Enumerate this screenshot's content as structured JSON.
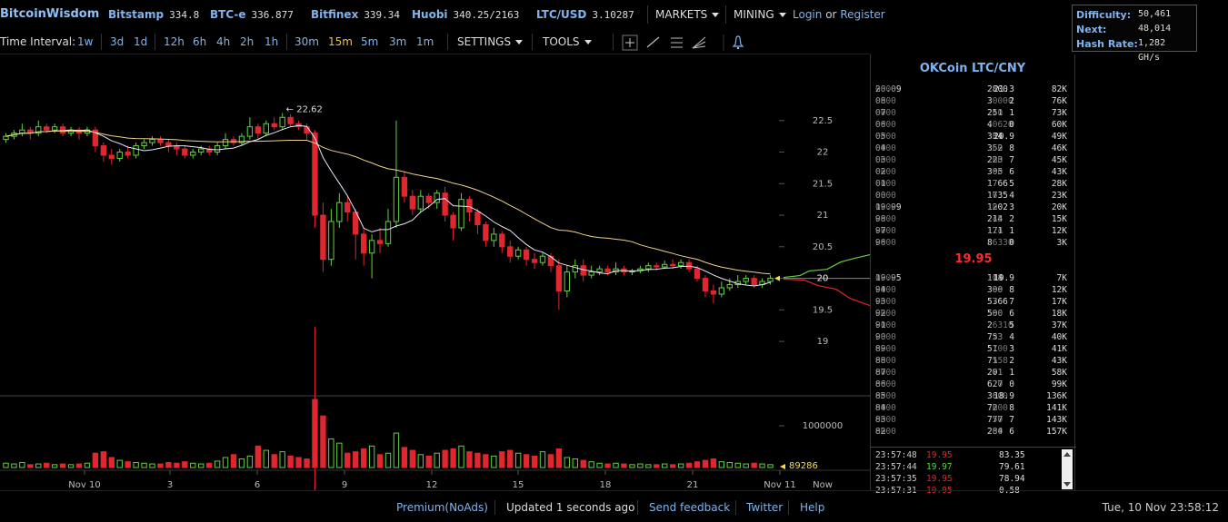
{
  "logo": "BitcoinWisdom",
  "tickers": [
    {
      "exchange": "Bitstamp",
      "price": "334.8"
    },
    {
      "exchange": "BTC-e",
      "price": "336.877"
    },
    {
      "exchange": "Bitfinex",
      "price": "339.34"
    },
    {
      "exchange": "Huobi",
      "price": "340.25/2163"
    },
    {
      "exchange": "LTC/USD",
      "price": "3.10287"
    }
  ],
  "menus": {
    "markets": "MARKETS",
    "mining": "MINING"
  },
  "auth": {
    "login": "Login",
    "or": "or",
    "register": "Register"
  },
  "mining_stats": {
    "difficulty_label": "Difficulty:",
    "difficulty": "50,461",
    "next_label": "Next:",
    "next": "48,014",
    "hashrate_label": "Hash Rate:",
    "hashrate": "1,282 GH/s"
  },
  "interval_label": "Time Interval:",
  "intervals": [
    "1w",
    "3d",
    "1d",
    "12h",
    "6h",
    "4h",
    "2h",
    "1h",
    "30m",
    "15m",
    "5m",
    "3m",
    "1m"
  ],
  "active_interval": "15m",
  "settings_label": "SETTINGS",
  "tools_label": "TOOLS",
  "colors": {
    "up": "#64d23c",
    "down": "#e0262e",
    "accent": "#7fb4ee",
    "ma_fast": "#e8e8ff",
    "ma_slow": "#f1d38a"
  },
  "chart_data": {
    "type": "candlestick",
    "price_axis_ticks": [
      "22.5",
      "22",
      "21.5",
      "21",
      "20.5",
      "20",
      "19.5",
      "19"
    ],
    "price_range": [
      18.8,
      23.0
    ],
    "volume_axis_label": "1000000",
    "volume_range": [
      0,
      1700000
    ],
    "time_axis_ticks": [
      "Nov 10",
      "3",
      "6",
      "9",
      "12",
      "15",
      "18",
      "21",
      "Nov 11",
      "Now"
    ],
    "high_marker": "22.62",
    "current_price_marker": "20",
    "current_volume_marker": "89286",
    "candles": [
      [
        22.2,
        22.25,
        22.3,
        22.15
      ],
      [
        22.25,
        22.3,
        22.35,
        22.2
      ],
      [
        22.3,
        22.35,
        22.45,
        22.25
      ],
      [
        22.35,
        22.3,
        22.4,
        22.2
      ],
      [
        22.3,
        22.4,
        22.5,
        22.25
      ],
      [
        22.4,
        22.35,
        22.45,
        22.3
      ],
      [
        22.35,
        22.4,
        22.45,
        22.3
      ],
      [
        22.4,
        22.3,
        22.45,
        22.25
      ],
      [
        22.3,
        22.35,
        22.4,
        22.25
      ],
      [
        22.35,
        22.3,
        22.4,
        22.2
      ],
      [
        22.3,
        22.35,
        22.4,
        22.25
      ],
      [
        22.35,
        22.1,
        22.4,
        22.0
      ],
      [
        22.1,
        21.95,
        22.15,
        21.85
      ],
      [
        21.95,
        21.9,
        22.05,
        21.8
      ],
      [
        21.9,
        22.0,
        22.05,
        21.85
      ],
      [
        22.0,
        21.95,
        22.1,
        21.9
      ],
      [
        21.95,
        22.1,
        22.15,
        21.9
      ],
      [
        22.1,
        22.15,
        22.2,
        22.05
      ],
      [
        22.15,
        22.2,
        22.25,
        22.1
      ],
      [
        22.2,
        22.15,
        22.25,
        22.1
      ],
      [
        22.15,
        22.1,
        22.2,
        22.0
      ],
      [
        22.1,
        22.05,
        22.15,
        21.95
      ],
      [
        22.05,
        21.95,
        22.1,
        21.9
      ],
      [
        21.95,
        22.0,
        22.05,
        21.9
      ],
      [
        22.0,
        22.05,
        22.1,
        21.95
      ],
      [
        22.05,
        22.0,
        22.1,
        21.95
      ],
      [
        22.0,
        22.1,
        22.15,
        21.95
      ],
      [
        22.1,
        22.2,
        22.3,
        22.05
      ],
      [
        22.2,
        22.15,
        22.25,
        22.1
      ],
      [
        22.15,
        22.25,
        22.3,
        22.1
      ],
      [
        22.25,
        22.4,
        22.55,
        22.2
      ],
      [
        22.4,
        22.3,
        22.45,
        22.2
      ],
      [
        22.3,
        22.45,
        22.5,
        22.25
      ],
      [
        22.45,
        22.4,
        22.55,
        22.35
      ],
      [
        22.4,
        22.55,
        22.62,
        22.35
      ],
      [
        22.55,
        22.45,
        22.6,
        22.4
      ],
      [
        22.45,
        22.4,
        22.5,
        22.35
      ],
      [
        22.4,
        22.3,
        22.45,
        22.2
      ],
      [
        22.3,
        21.0,
        22.35,
        20.8
      ],
      [
        21.0,
        20.3,
        21.2,
        20.1
      ],
      [
        20.3,
        20.9,
        21.1,
        20.2
      ],
      [
        20.9,
        21.2,
        21.35,
        20.8
      ],
      [
        21.2,
        21.05,
        21.3,
        20.9
      ],
      [
        21.05,
        20.7,
        21.1,
        20.3
      ],
      [
        20.7,
        20.4,
        20.8,
        20.2
      ],
      [
        20.4,
        20.6,
        20.7,
        20.0
      ],
      [
        20.6,
        20.55,
        20.8,
        20.4
      ],
      [
        20.55,
        20.9,
        21.1,
        20.5
      ],
      [
        20.9,
        21.6,
        22.5,
        20.8
      ],
      [
        21.6,
        21.3,
        21.7,
        21.2
      ],
      [
        21.3,
        21.1,
        21.4,
        21.0
      ],
      [
        21.1,
        21.3,
        21.4,
        21.05
      ],
      [
        21.3,
        21.2,
        21.35,
        21.1
      ],
      [
        21.2,
        21.35,
        21.4,
        21.1
      ],
      [
        21.35,
        21.0,
        21.45,
        20.9
      ],
      [
        21.0,
        20.8,
        21.05,
        20.6
      ],
      [
        20.8,
        21.25,
        21.35,
        20.75
      ],
      [
        21.25,
        21.05,
        21.3,
        20.9
      ],
      [
        21.05,
        20.85,
        21.1,
        20.7
      ],
      [
        20.85,
        20.6,
        20.9,
        20.5
      ],
      [
        20.6,
        20.7,
        20.8,
        20.5
      ],
      [
        20.7,
        20.5,
        20.75,
        20.4
      ],
      [
        20.5,
        20.35,
        20.6,
        20.25
      ],
      [
        20.35,
        20.45,
        20.5,
        20.3
      ],
      [
        20.45,
        20.3,
        20.5,
        20.2
      ],
      [
        20.3,
        20.25,
        20.4,
        20.15
      ],
      [
        20.25,
        20.35,
        20.4,
        20.2
      ],
      [
        20.35,
        20.2,
        20.4,
        20.1
      ],
      [
        20.2,
        19.8,
        20.3,
        19.5
      ],
      [
        19.8,
        20.1,
        20.2,
        19.7
      ],
      [
        20.1,
        20.2,
        20.3,
        20.0
      ],
      [
        20.2,
        20.05,
        20.3,
        19.95
      ],
      [
        20.05,
        20.1,
        20.2,
        20.0
      ],
      [
        20.1,
        20.15,
        20.2,
        20.05
      ],
      [
        20.15,
        20.1,
        20.2,
        20.05
      ],
      [
        20.1,
        20.15,
        20.25,
        20.05
      ],
      [
        20.15,
        20.1,
        20.2,
        20.05
      ],
      [
        20.1,
        20.12,
        20.15,
        20.05
      ],
      [
        20.12,
        20.15,
        20.2,
        20.08
      ],
      [
        20.15,
        20.2,
        20.25,
        20.1
      ],
      [
        20.2,
        20.18,
        20.25,
        20.12
      ],
      [
        20.18,
        20.22,
        20.28,
        20.15
      ],
      [
        20.22,
        20.2,
        20.3,
        20.15
      ],
      [
        20.2,
        20.25,
        20.3,
        20.15
      ],
      [
        20.25,
        20.15,
        20.3,
        20.1
      ],
      [
        20.15,
        20.0,
        20.2,
        19.95
      ],
      [
        20.0,
        19.8,
        20.05,
        19.7
      ],
      [
        19.8,
        19.75,
        19.9,
        19.6
      ],
      [
        19.75,
        19.85,
        19.95,
        19.7
      ],
      [
        19.85,
        19.9,
        20.0,
        19.8
      ],
      [
        19.9,
        19.95,
        20.05,
        19.85
      ],
      [
        19.95,
        20.0,
        20.05,
        19.9
      ],
      [
        20.0,
        19.9,
        20.05,
        19.85
      ],
      [
        19.9,
        19.95,
        20.0,
        19.85
      ],
      [
        19.95,
        20.0,
        20.05,
        19.9
      ]
    ],
    "volumes": [
      6,
      5,
      7,
      4,
      5,
      6,
      4,
      5,
      4,
      5,
      6,
      20,
      22,
      14,
      10,
      8,
      7,
      6,
      5,
      5,
      7,
      6,
      8,
      6,
      5,
      6,
      9,
      14,
      18,
      12,
      16,
      30,
      24,
      18,
      22,
      16,
      14,
      12,
      95,
      72,
      40,
      34,
      20,
      22,
      26,
      30,
      18,
      20,
      48,
      28,
      24,
      18,
      16,
      20,
      24,
      26,
      30,
      22,
      20,
      18,
      16,
      22,
      24,
      20,
      18,
      16,
      22,
      18,
      26,
      14,
      12,
      10,
      8,
      6,
      5,
      6,
      5,
      4,
      5,
      4,
      4,
      5,
      4,
      5,
      6,
      8,
      10,
      12,
      8,
      7,
      6,
      5,
      6,
      5,
      4
    ]
  },
  "book": {
    "title": "OKCoin LTC/CNY",
    "asks": [
      {
        "p_hi": "20.09",
        "p_lo": "0000",
        "a_hi": "2800",
        "a_lo": ".3",
        "s": "21.3",
        "c": "",
        "t": "82K"
      },
      {
        "p_hi": "08",
        "p_lo": "0000",
        "a_hi": "3",
        "a_lo": ".0000",
        "s": "2",
        "c": "",
        "t": "76K"
      },
      {
        "p_hi": "07",
        "p_lo": "0000",
        "a_hi": "251",
        "a_lo": ".40",
        "s": "1",
        "c": "",
        "t": "73K"
      },
      {
        "p_hi": "06",
        "p_lo": "0000",
        "a_hi": "4",
        "a_lo": ".0620",
        "s": "0",
        "c": "",
        "t": "60K"
      },
      {
        "p_hi": "05",
        "p_lo": "0000",
        "a_hi": "334",
        "a_lo": ".61",
        "s": "20.9",
        "c": "",
        "t": "49K"
      },
      {
        "p_hi": "04",
        "p_lo": "0000",
        "a_hi": "352",
        "a_lo": ".60",
        "s": "8",
        "c": "",
        "t": "46K"
      },
      {
        "p_hi": "03",
        "p_lo": "0000",
        "a_hi": "223",
        "a_lo": ".60",
        "s": "7",
        "c": "",
        "t": "45K"
      },
      {
        "p_hi": "02",
        "p_lo": "0000",
        "a_hi": "305",
        "a_lo": ".60",
        "s": "6",
        "c": "",
        "t": "43K"
      },
      {
        "p_hi": "01",
        "p_lo": "0000",
        "a_hi": "1766",
        "a_lo": ".7",
        "s": "5",
        "c": "",
        "t": "28K"
      },
      {
        "p_hi": "00",
        "p_lo": "0000",
        "a_hi": "1735",
        "a_lo": ".6",
        "s": "4",
        "c": "",
        "t": "23K"
      },
      {
        "p_hi": "19.99",
        "p_lo": "0000",
        "a_hi": "1202",
        "a_lo": ".0",
        "s": "3",
        "c": "",
        "t": "20K"
      },
      {
        "p_hi": "98",
        "p_lo": "0000",
        "a_hi": "214",
        "a_lo": ".45",
        "s": "2",
        "c": "",
        "t": "15K"
      },
      {
        "p_hi": "97",
        "p_lo": "0000",
        "a_hi": "171",
        "a_lo": ".24",
        "s": "1",
        "c": "",
        "t": "12K"
      },
      {
        "p_hi": "96",
        "p_lo": "0000",
        "a_hi": "8",
        "a_lo": ".6330",
        "s": "0",
        "c": "",
        "t": "3K"
      }
    ],
    "mid_price": "19.95",
    "bids": [
      {
        "p_hi": "19.95",
        "p_lo": "0000",
        "a_hi": "114",
        "a_lo": ".08",
        "s": "19.9",
        "c": "",
        "t": "7K"
      },
      {
        "p_hi": "94",
        "p_lo": "0000",
        "a_hi": "300",
        "a_lo": ".88",
        "s": "8",
        "c": "",
        "t": "12K"
      },
      {
        "p_hi": "93",
        "p_lo": "0000",
        "a_hi": "5366",
        "a_lo": ".7",
        "s": "7",
        "c": "",
        "t": "17K"
      },
      {
        "p_hi": "92",
        "p_lo": "0000",
        "a_hi": "500",
        "a_lo": ".80",
        "s": "6",
        "c": "",
        "t": "18K"
      },
      {
        "p_hi": "91",
        "p_lo": "0000",
        "a_hi": "2",
        "a_lo": ".6310",
        "s": "5",
        "c": "",
        "t": "37K"
      },
      {
        "p_hi": "90",
        "p_lo": "0000",
        "a_hi": "753",
        "a_lo": ".23",
        "s": "4",
        "c": "",
        "t": "40K"
      },
      {
        "p_hi": "89",
        "p_lo": "0000",
        "a_hi": "51",
        "a_lo": ".700",
        "s": "3",
        "c": "",
        "t": "41K"
      },
      {
        "p_hi": "88",
        "p_lo": "0000",
        "a_hi": "71",
        "a_lo": ".558",
        "s": "2",
        "c": "",
        "t": "43K"
      },
      {
        "p_hi": "87",
        "p_lo": "0000",
        "a_hi": "201",
        "a_lo": ".71",
        "s": "1",
        "c": "",
        "t": "58K"
      },
      {
        "p_hi": "86",
        "p_lo": "0000",
        "a_hi": "627",
        "a_lo": ".70",
        "s": "0",
        "c": "",
        "t": "99K"
      },
      {
        "p_hi": "85",
        "p_lo": "0000",
        "a_hi": "36",
        "a_lo": ".600",
        "s": "18.9",
        "c": "",
        "t": "136K"
      },
      {
        "p_hi": "84",
        "p_lo": "0000",
        "a_hi": "72",
        "a_lo": ".600",
        "s": "8",
        "c": "",
        "t": "141K"
      },
      {
        "p_hi": "83",
        "p_lo": "0000",
        "a_hi": "777",
        "a_lo": ".50",
        "s": "7",
        "c": "",
        "t": "143K"
      },
      {
        "p_hi": "82",
        "p_lo": "0000",
        "a_hi": "284",
        "a_lo": ".60",
        "s": "6",
        "c": "",
        "t": "157K"
      }
    ],
    "trades": [
      {
        "time": "23:57:48",
        "price": "19.95",
        "dir": "down",
        "amount": "83.35"
      },
      {
        "time": "23:57:44",
        "price": "19.97",
        "dir": "up",
        "amount": "79.61"
      },
      {
        "time": "23:57:35",
        "price": "19.95",
        "dir": "down",
        "amount": "78.94"
      },
      {
        "time": "23:57:31",
        "price": "19.95",
        "dir": "down",
        "amount": "0.58"
      }
    ]
  },
  "footer": {
    "premium": "Premium(NoAds)",
    "updated": "Updated 1 seconds ago",
    "feedback": "Send feedback",
    "twitter": "Twitter",
    "help": "Help",
    "clock": "Tue, 10 Nov 23:58:12"
  }
}
